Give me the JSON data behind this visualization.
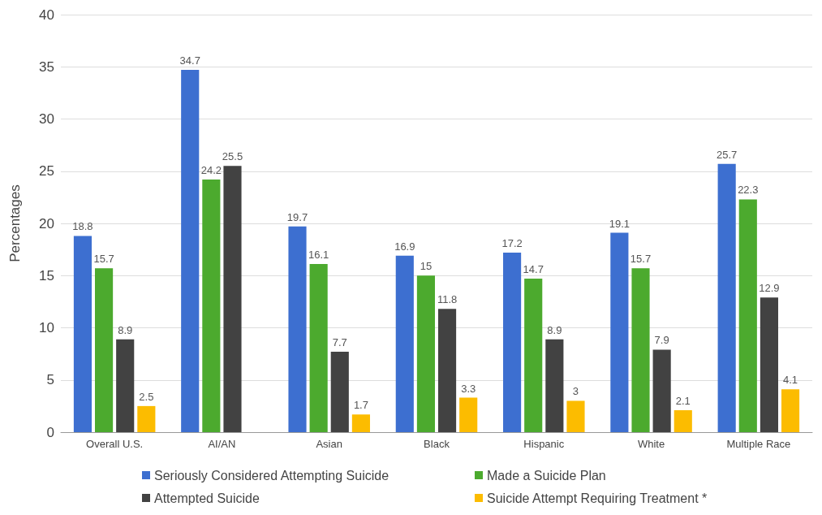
{
  "chart_data": {
    "type": "bar",
    "ylabel": "Percentages",
    "categories": [
      "Overall U.S.",
      "AI/AN",
      "Asian",
      "Black",
      "Hispanic",
      "White",
      "Multiple Race"
    ],
    "series": [
      {
        "name": "Seriously Considered Attempting Suicide",
        "color": "#3d6fd0",
        "values": [
          18.8,
          34.7,
          19.7,
          16.9,
          17.2,
          19.1,
          25.7
        ]
      },
      {
        "name": "Made a Suicide Plan",
        "color": "#4caa2e",
        "values": [
          15.7,
          24.2,
          16.1,
          15,
          14.7,
          15.7,
          22.3
        ]
      },
      {
        "name": "Attempted Suicide",
        "color": "#424242",
        "values": [
          8.9,
          25.5,
          7.7,
          11.8,
          8.9,
          7.9,
          12.9
        ]
      },
      {
        "name": "Suicide Attempt Requiring Treatment *",
        "color": "#fcbc00",
        "values": [
          2.5,
          null,
          1.7,
          3.3,
          3,
          2.1,
          4.1
        ]
      }
    ],
    "ylim": [
      0,
      40
    ],
    "yticks": [
      0,
      5,
      10,
      15,
      20,
      25,
      30,
      35,
      40
    ],
    "grid": "y",
    "data_labels": true,
    "legend": "bottom"
  }
}
